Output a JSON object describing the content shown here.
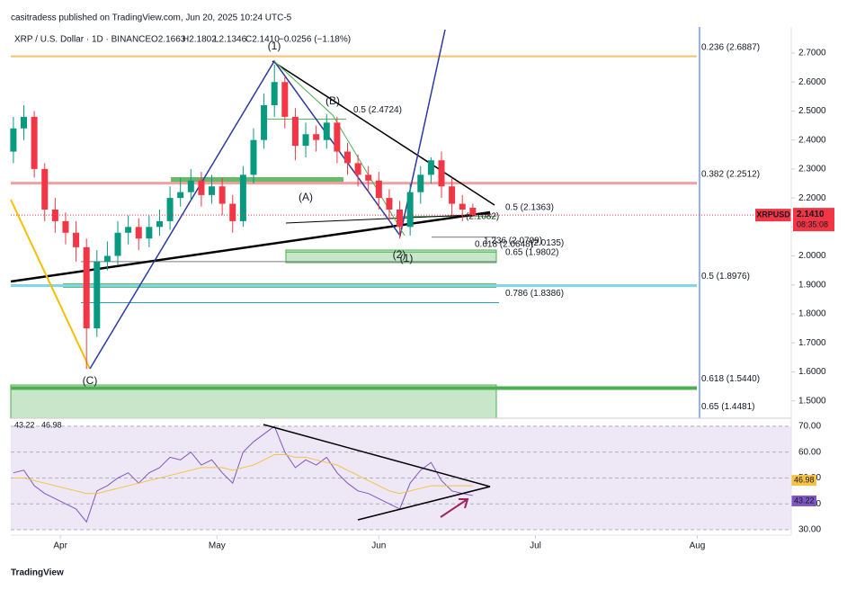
{
  "header": {
    "title": "casitradess published on TradingView.com, Jun 20, 2025 10:24 UTC-5",
    "symbol": "XRP / U.S. Dollar · 1D · BINANCE",
    "ohlc": [
      "O2.1663",
      "H2.1802",
      "L2.1346",
      "C2.1410",
      "−0.0256 (−1.18%)"
    ]
  },
  "price_tag": {
    "symbol": "XRPUSD",
    "price": "2.1410",
    "countdown": "08:35:08"
  },
  "footer": "TradingView",
  "chart_data": [
    {
      "type": "candlestick",
      "up_color": "#089981",
      "down_color": "#f23645",
      "x": [
        -9,
        -7,
        -5,
        -3,
        -1,
        1,
        3,
        5,
        7,
        9,
        11,
        13,
        15,
        17,
        19,
        21,
        23,
        25,
        27,
        29,
        31,
        33,
        35,
        37,
        39,
        41,
        43,
        45,
        47,
        49,
        51,
        53,
        55,
        57,
        59,
        61,
        63,
        65,
        67,
        69,
        71,
        73,
        75,
        77,
        79
      ],
      "open": [
        2.36,
        2.44,
        2.48,
        2.3,
        2.16,
        2.12,
        2.08,
        2.03,
        1.75,
        1.98,
        2.0,
        2.08,
        2.1,
        2.06,
        2.1,
        2.12,
        2.2,
        2.22,
        2.26,
        2.21,
        2.24,
        2.18,
        2.12,
        2.28,
        2.4,
        2.52,
        2.6,
        2.48,
        2.38,
        2.42,
        2.4,
        2.46,
        2.36,
        2.32,
        2.28,
        2.26,
        2.2,
        2.16,
        2.1,
        2.22,
        2.28,
        2.33,
        2.24,
        2.18,
        2.1663
      ],
      "high": [
        2.48,
        2.52,
        2.5,
        2.32,
        2.2,
        2.15,
        2.12,
        2.06,
        2.02,
        2.05,
        2.12,
        2.14,
        2.13,
        2.14,
        2.16,
        2.24,
        2.27,
        2.3,
        2.29,
        2.28,
        2.27,
        2.21,
        2.31,
        2.44,
        2.56,
        2.66,
        2.62,
        2.51,
        2.46,
        2.45,
        2.49,
        2.48,
        2.39,
        2.35,
        2.31,
        2.29,
        2.23,
        2.19,
        2.25,
        2.31,
        2.34,
        2.36,
        2.27,
        2.21,
        2.1802
      ],
      "low": [
        2.32,
        2.4,
        2.27,
        2.12,
        2.08,
        2.04,
        1.98,
        1.61,
        1.72,
        1.95,
        1.97,
        2.04,
        2.02,
        2.03,
        2.07,
        2.09,
        2.17,
        2.19,
        2.17,
        2.18,
        2.14,
        2.08,
        2.1,
        2.25,
        2.37,
        2.48,
        2.44,
        2.33,
        2.34,
        2.36,
        2.37,
        2.32,
        2.28,
        2.24,
        2.22,
        2.16,
        2.12,
        2.06,
        2.07,
        2.18,
        2.25,
        2.2,
        2.14,
        2.12,
        2.1346
      ],
      "close": [
        2.44,
        2.48,
        2.3,
        2.16,
        2.12,
        2.08,
        2.03,
        1.75,
        1.98,
        2.0,
        2.08,
        2.1,
        2.06,
        2.1,
        2.12,
        2.2,
        2.22,
        2.26,
        2.21,
        2.24,
        2.18,
        2.12,
        2.28,
        2.4,
        2.52,
        2.6,
        2.48,
        2.38,
        2.42,
        2.4,
        2.46,
        2.36,
        2.32,
        2.28,
        2.26,
        2.2,
        2.16,
        2.1,
        2.22,
        2.28,
        2.33,
        2.24,
        2.18,
        2.16,
        2.141
      ],
      "last_price": {
        "value": 2.141,
        "label": "2.1410"
      },
      "last_color": "#f23645",
      "xlim": [
        -9.5,
        140
      ],
      "xticks": [
        {
          "value": 0,
          "label": "Apr"
        },
        {
          "value": 30,
          "label": "May"
        },
        {
          "value": 61,
          "label": "Jun"
        },
        {
          "value": 91,
          "label": "Jul"
        },
        {
          "value": 122,
          "label": "Aug"
        }
      ],
      "ylim": [
        1.44,
        2.79
      ],
      "yticks": [
        {
          "value": 1.5,
          "label": "1.5000"
        },
        {
          "value": 1.6,
          "label": "1.6000"
        },
        {
          "value": 1.7,
          "label": "1.7000"
        },
        {
          "value": 1.8,
          "label": "1.8000"
        },
        {
          "value": 1.9,
          "label": "1.9000"
        },
        {
          "value": 2.0,
          "label": "2.0000"
        },
        {
          "value": 2.1,
          "label": "2.1000"
        },
        {
          "value": 2.2,
          "label": "2.2000"
        },
        {
          "value": 2.3,
          "label": "2.3000"
        },
        {
          "value": 2.4,
          "label": "2.4000"
        },
        {
          "value": 2.5,
          "label": "2.5000"
        },
        {
          "value": 2.6,
          "label": "2.6000"
        },
        {
          "value": 2.7,
          "label": "2.7000"
        }
      ],
      "levels": [
        {
          "label": "0.236 (2.6887)",
          "value": 2.6887,
          "color": "#f5c26b"
        },
        {
          "label": "0.382 (2.2512)",
          "value": 2.2512,
          "color": "#f4a0a0"
        },
        {
          "label": "0.5 (1.8976)",
          "value": 1.8976,
          "color": "#7fd6e8"
        },
        {
          "label": "0.618 (1.5440)",
          "value": 1.544,
          "color": "#4caf50"
        },
        {
          "label": "0.65 (1.4481)",
          "value": 1.4481,
          "color": "#2962ff"
        },
        {
          "label": "0.5 (2.4724)",
          "value": 2.4724,
          "color": "#4caf50"
        },
        {
          "label": "0.5 (2.1363)",
          "value": 2.1363,
          "color": "#4caf50"
        },
        {
          "label": "0.618 (2.0648)",
          "value": 2.0648,
          "color": "#787b86"
        },
        {
          "label": "(2.0135)",
          "value": 2.0135,
          "color": "#4caf50"
        },
        {
          "label": "0.65 (1.9802)",
          "value": 1.9802,
          "color": "#787b86"
        },
        {
          "label": "0.786 (1.8386)",
          "value": 1.8386,
          "color": "#26a0b8"
        },
        {
          "label": "1.236 (2.0709)",
          "value": 2.0709,
          "color": "#f5a623"
        },
        {
          "label": "(2.1082)",
          "value": 2.1082,
          "color": "#787b86"
        }
      ],
      "waves": [
        {
          "label": "(1)",
          "color": "#2b3aa0"
        },
        {
          "label": "(B)",
          "color": "#7cb342"
        },
        {
          "label": "(A)",
          "color": "#7cb342"
        },
        {
          "label": "(2)",
          "color": "#2b3aa0"
        },
        {
          "label": "(1)",
          "color": "#7cb342"
        },
        {
          "label": "(C)",
          "color": "#f5c000"
        }
      ]
    },
    {
      "type": "line",
      "x": [
        -9,
        -7,
        -5,
        -3,
        -1,
        1,
        3,
        5,
        7,
        9,
        11,
        13,
        15,
        17,
        19,
        21,
        23,
        25,
        27,
        29,
        31,
        33,
        35,
        37,
        39,
        41,
        43,
        45,
        47,
        49,
        51,
        53,
        55,
        57,
        59,
        61,
        63,
        65,
        67,
        69,
        71,
        73,
        75,
        77,
        79
      ],
      "series": [
        {
          "color": "#7e57c2",
          "values": [
            52,
            53,
            47,
            44,
            42,
            40,
            38,
            33,
            45,
            47,
            50,
            52,
            48,
            52,
            54,
            58,
            57,
            60,
            55,
            57,
            52,
            48,
            60,
            64,
            67,
            70,
            60,
            54,
            57,
            55,
            58,
            52,
            48,
            45,
            44,
            42,
            40,
            38,
            48,
            53,
            56,
            49,
            45,
            44,
            43.22
          ]
        },
        {
          "color": "#f5c242",
          "values": [
            50,
            50,
            49,
            48,
            47,
            46,
            45,
            44,
            44,
            45,
            46,
            47,
            48,
            49,
            50,
            51,
            52,
            53,
            54,
            54,
            54,
            53,
            54,
            55,
            57,
            59,
            59,
            58,
            58,
            57,
            56,
            55,
            53,
            51,
            49,
            47,
            45,
            44,
            45,
            46,
            47,
            47,
            47,
            47,
            46.98
          ]
        }
      ],
      "xlim": [
        -9.5,
        140
      ],
      "ylim": [
        27.9,
        73.1
      ],
      "yticks": [
        {
          "value": 30,
          "label": "30.00"
        },
        {
          "value": 40,
          "label": "40.00"
        },
        {
          "value": 50,
          "label": "50.00"
        },
        {
          "value": 60,
          "label": "60.00"
        },
        {
          "value": 70,
          "label": "70.00"
        }
      ]
    }
  ]
}
